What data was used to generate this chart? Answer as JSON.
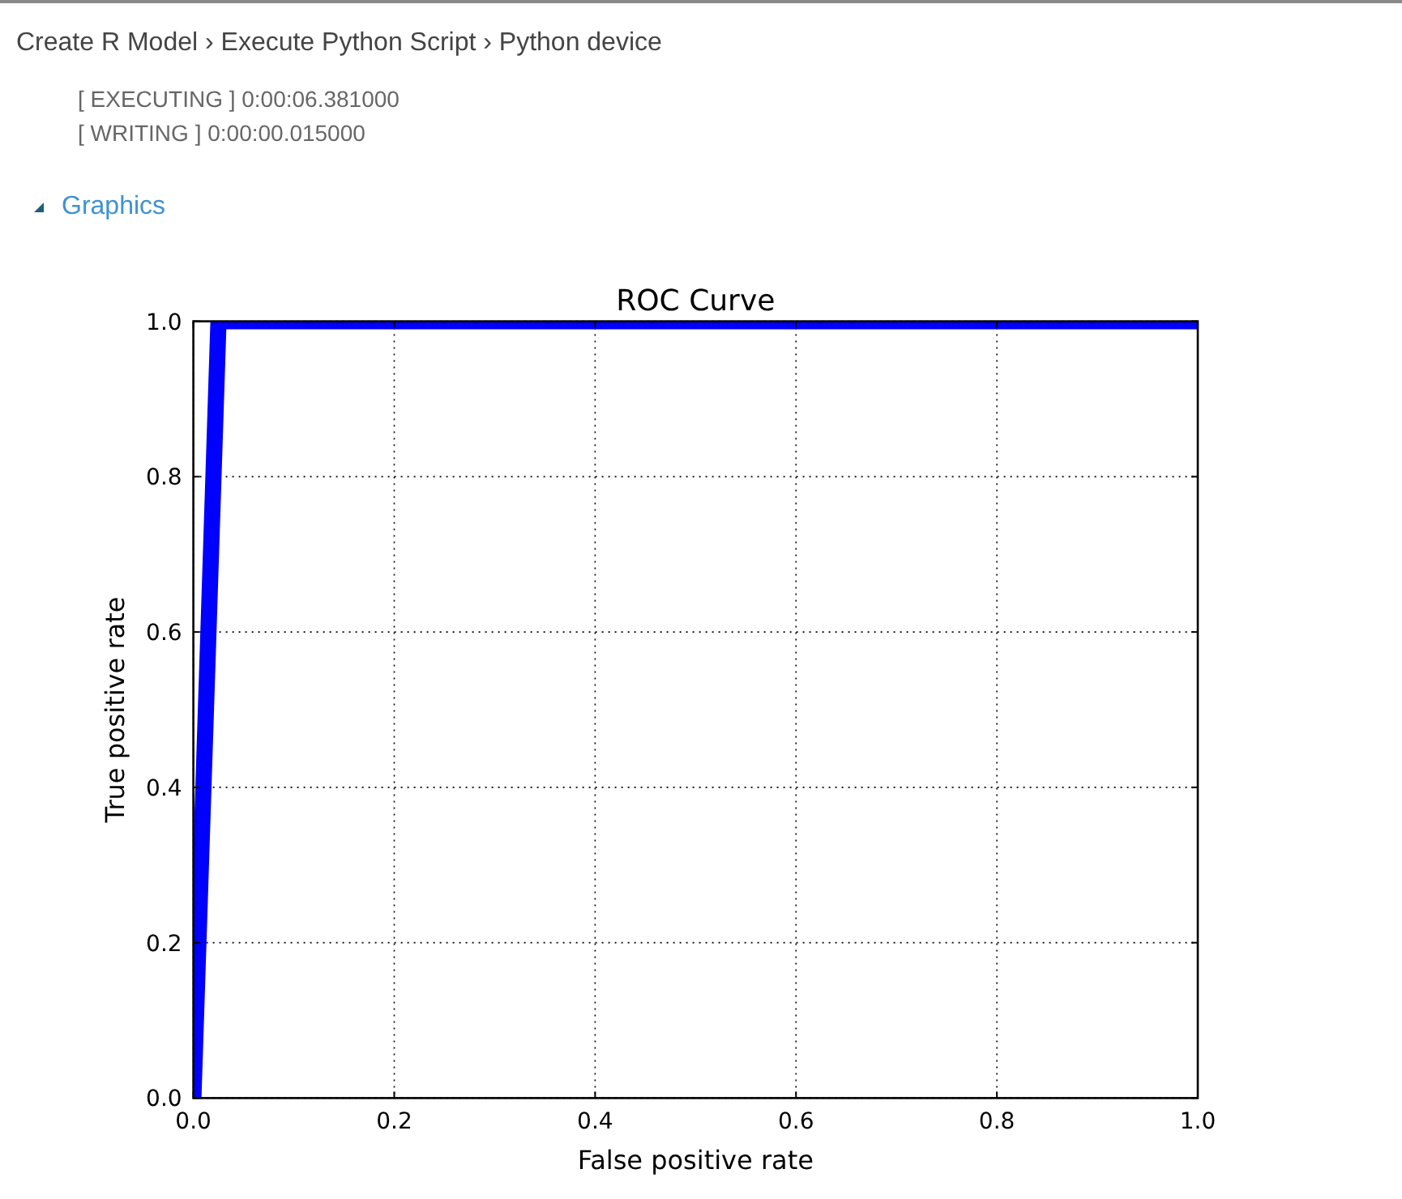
{
  "chart_data": {
    "type": "line",
    "title": "ROC Curve",
    "xlabel": "False positive rate",
    "ylabel": "True positive rate",
    "annotations": [
      "Create R Model › Execute Python Script › Python device",
      "[ EXECUTING ] 0:00:06.381000",
      "[ WRITING ] 0:00:00.015000",
      "Graphics"
    ],
    "x": [
      0,
      0.025,
      1
    ],
    "series": [
      {
        "color": "#0000ff",
        "values": [
          0,
          1,
          1
        ]
      }
    ],
    "xlim": [
      0,
      1
    ],
    "ylim": [
      0,
      1
    ],
    "xticks": [
      {
        "value": 0,
        "label": "0.0"
      },
      0.2,
      0.4,
      0.6,
      0.8,
      {
        "value": 1,
        "label": "1.0"
      }
    ],
    "yticks": [
      {
        "value": 0,
        "label": "0.0"
      },
      0.2,
      0.4,
      0.6,
      0.8,
      {
        "value": 1,
        "label": "1.0"
      }
    ],
    "grid": true
  }
}
